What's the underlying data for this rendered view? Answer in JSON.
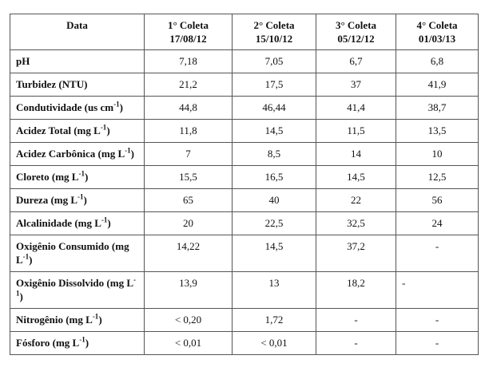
{
  "table": {
    "header": [
      {
        "title": "Data"
      },
      {
        "title": "1° Coleta",
        "date": "17/08/12"
      },
      {
        "title": "2° Coleta",
        "date": "15/10/12"
      },
      {
        "title": "3° Coleta",
        "date": "05/12/12"
      },
      {
        "title": "4° Coleta",
        "date": "01/03/13"
      }
    ],
    "rows": [
      {
        "label": [
          "pH"
        ],
        "values": [
          "7,18",
          "7,05",
          "6,7",
          "6,8"
        ]
      },
      {
        "label": [
          "Turbidez (NTU)"
        ],
        "values": [
          "21,2",
          "17,5",
          "37",
          "41,9"
        ]
      },
      {
        "label": [
          "Condutividade (us cm",
          "-1",
          ")"
        ],
        "values": [
          "44,8",
          "46,44",
          "41,4",
          "38,7"
        ]
      },
      {
        "label": [
          "Acidez Total (mg L",
          "-1",
          ")"
        ],
        "values": [
          "11,8",
          "14,5",
          "11,5",
          "13,5"
        ]
      },
      {
        "label": [
          "Acidez Carbônica (mg L",
          "-1",
          ")"
        ],
        "values": [
          "7",
          "8,5",
          "14",
          "10"
        ]
      },
      {
        "label": [
          "Cloreto (mg L",
          "-1",
          ")"
        ],
        "values": [
          "15,5",
          "16,5",
          "14,5",
          "12,5"
        ]
      },
      {
        "label": [
          "Dureza (mg L",
          "-1",
          ")"
        ],
        "values": [
          "65",
          "40",
          "22",
          "56"
        ]
      },
      {
        "label": [
          "Alcalinidade (mg L",
          "-1",
          ")"
        ],
        "values": [
          "20",
          "22,5",
          "32,5",
          "24"
        ]
      },
      {
        "label": [
          "Oxigênio Consumido (mg L",
          "-1",
          ")"
        ],
        "values": [
          "14,22",
          "14,5",
          "37,2",
          "-"
        ]
      },
      {
        "label": [
          "Oxigênio Dissolvido (mg L",
          "-1",
          ")"
        ],
        "values": [
          "13,9",
          "13",
          "18,2",
          "-"
        ]
      },
      {
        "label": [
          "Nitrogênio (mg L",
          "-1",
          ")"
        ],
        "values": [
          "< 0,20",
          "1,72",
          "-",
          "-"
        ]
      },
      {
        "label": [
          "Fósforo (mg L",
          "-1",
          ")"
        ],
        "values": [
          "< 0,01",
          "< 0,01",
          "-",
          "-"
        ]
      }
    ]
  }
}
